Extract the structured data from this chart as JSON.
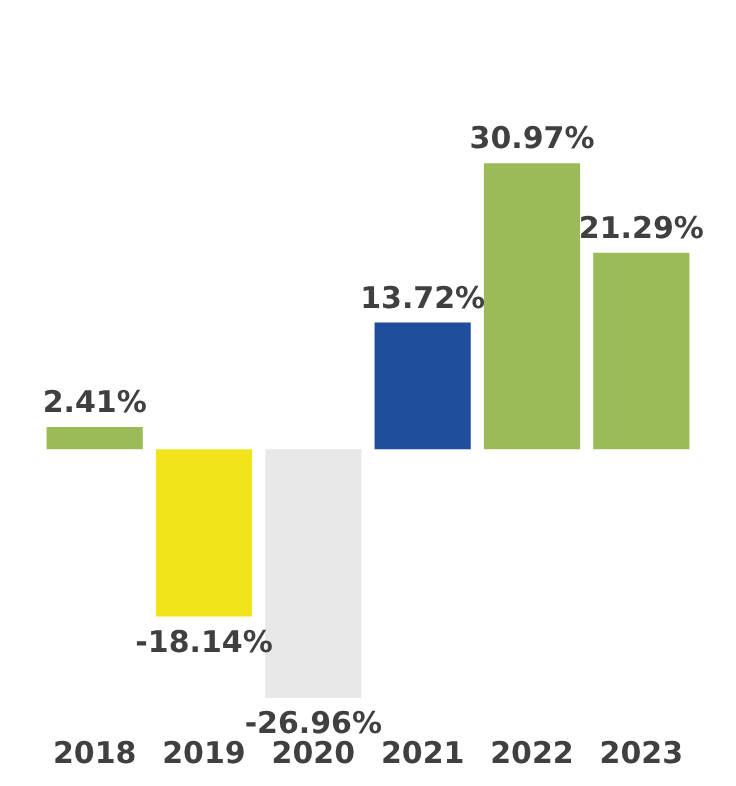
{
  "chart_data": {
    "type": "bar",
    "categories": [
      "2018",
      "2019",
      "2020",
      "2021",
      "2022",
      "2023"
    ],
    "values": [
      2.41,
      -18.14,
      -26.96,
      13.72,
      30.97,
      21.29
    ],
    "colors": [
      "#9bbb59",
      "#f2e41a",
      "#e8e8e8",
      "#1f4e9c",
      "#9bbb59",
      "#9bbb59"
    ],
    "value_labels": [
      "2.41%",
      "-18.14%",
      "-26.96%",
      "13.72%",
      "30.97%",
      "21.29%"
    ],
    "grid": false
  }
}
